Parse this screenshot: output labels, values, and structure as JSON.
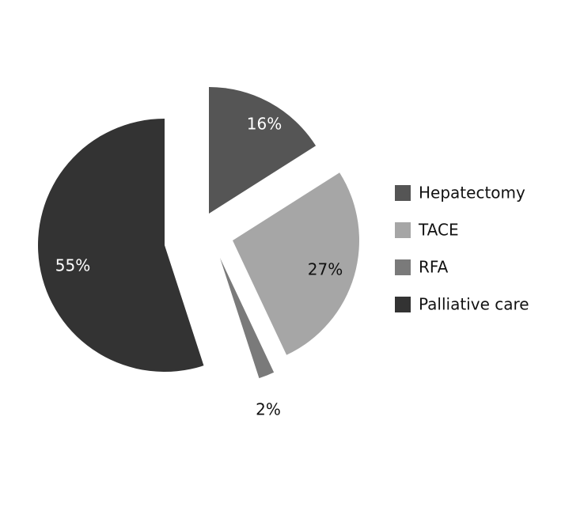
{
  "chart_data": {
    "type": "pie",
    "title": "",
    "slices": [
      {
        "label": "Hepatectomy",
        "value": 16,
        "value_label": "16%",
        "color": "#555555",
        "label_color": "#ffffff"
      },
      {
        "label": "TACE",
        "value": 27,
        "value_label": "27%",
        "color": "#a6a6a6",
        "label_color": "#111111"
      },
      {
        "label": "RFA",
        "value": 2,
        "value_label": "2%",
        "color": "#7a7a7a",
        "label_color": "#111111"
      },
      {
        "label": "Palliative care",
        "value": 55,
        "value_label": "55%",
        "color": "#333333",
        "label_color": "#ffffff"
      }
    ],
    "exploded": true,
    "legend_position": "right"
  }
}
